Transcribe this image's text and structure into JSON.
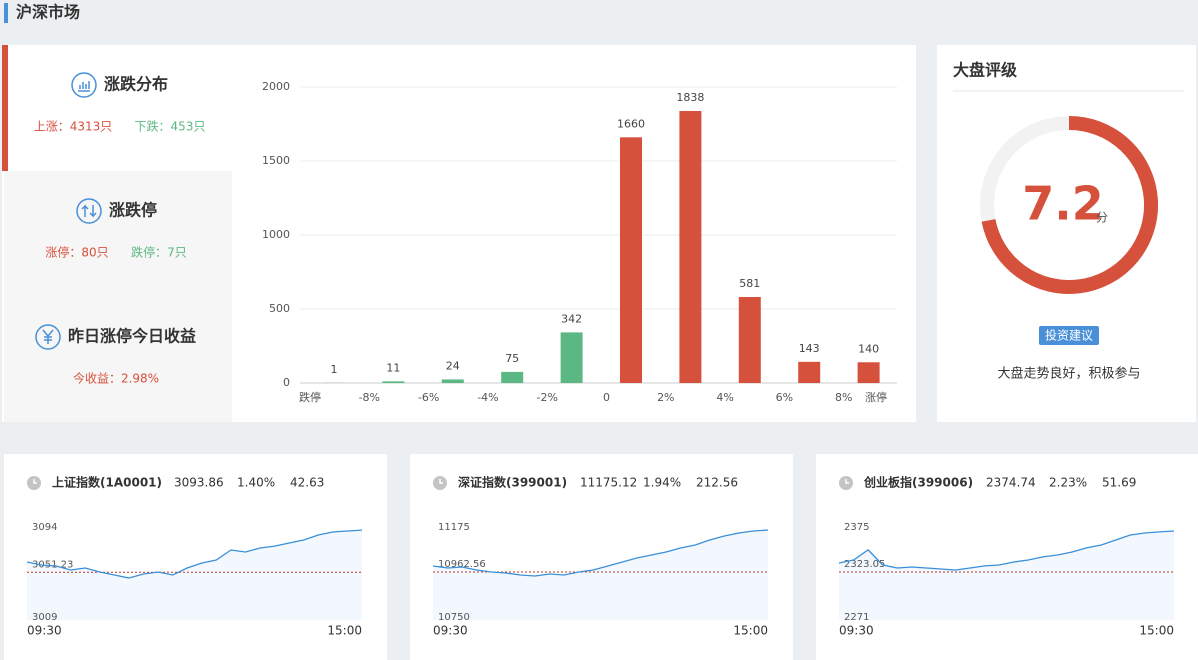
{
  "header": {
    "title": "沪深市场"
  },
  "tabs": [
    {
      "title": "涨跌分布",
      "stats": [
        "上涨：4313只",
        "下跌：453只"
      ]
    },
    {
      "title": "涨跌停",
      "stats": [
        "涨停：80只",
        "跌停：7只"
      ]
    },
    {
      "title": "昨日涨停今日收益",
      "stats": [
        "今收益：2.98%"
      ]
    }
  ],
  "rating": {
    "title": "大盘评级",
    "score": 7.2,
    "unit": "分",
    "range": [
      0,
      10
    ],
    "color": "#d6513c",
    "button": "投资建议",
    "comment": "大盘走势良好，积极参与"
  },
  "indices": [
    {
      "name": "上证指数(1A0001)",
      "price": "3093.86",
      "pct": "1.40%",
      "change": "42.63"
    },
    {
      "name": "深证指数(399001)",
      "price": "11175.12",
      "pct": "1.94%",
      "change": "212.56"
    },
    {
      "name": "创业板指(399006)",
      "price": "2374.74",
      "pct": "2.23%",
      "change": "51.69"
    }
  ],
  "chart_data": [
    {
      "type": "bar",
      "categories": [
        null,
        null,
        null,
        null,
        null,
        null,
        null,
        null,
        null,
        null
      ],
      "values": [
        1,
        11,
        24,
        75,
        342,
        1660,
        1838,
        581,
        143,
        140
      ],
      "colors": [
        "#5cb882",
        "#5cb882",
        "#5cb882",
        "#5cb882",
        "#5cb882",
        "#d6513c",
        "#d6513c",
        "#d6513c",
        "#d6513c",
        "#d6513c"
      ],
      "xtick_labels": [
        "跌停",
        "-8%",
        "-6%",
        "-4%",
        "-2%",
        "0",
        "2%",
        "4%",
        "6%",
        "8%",
        "涨停"
      ],
      "ylim": [
        0,
        2000
      ],
      "yticks": [
        0,
        500,
        1000,
        1500,
        2000
      ],
      "grid": true
    },
    {
      "type": "line",
      "color": "#3a8fd9",
      "values": [
        3060.9,
        3058.1,
        3057.2,
        3053.4,
        3055.3,
        3051.5,
        3048.7,
        3045.8,
        3049.6,
        3051.5,
        3048.7,
        3055.3,
        3060.0,
        3062.8,
        3072.3,
        3070.4,
        3074.2,
        3076.0,
        3078.9,
        3081.7,
        3086.4,
        3089.3,
        3090.2,
        3091.1
      ],
      "ylim": [
        3009,
        3094
      ],
      "yticks": [
        3009,
        3051.23,
        3094
      ],
      "xticks": [
        "09:30",
        "15:00"
      ]
    },
    {
      "type": "line",
      "color": "#3a8fd9",
      "values": [
        10990.7,
        10981.3,
        10986.0,
        10971.8,
        10962.4,
        10957.7,
        10948.2,
        10943.5,
        10953.0,
        10948.2,
        10962.4,
        10971.8,
        10990.7,
        11009.6,
        11028.5,
        11042.6,
        11056.8,
        11075.7,
        11089.8,
        11113.4,
        11132.3,
        11146.5,
        11155.9,
        11160.6
      ],
      "ylim": [
        10750,
        11175
      ],
      "yticks": [
        10750,
        10962.56,
        11175
      ],
      "xticks": [
        "09:30",
        "15:00"
      ]
    },
    {
      "type": "line",
      "color": "#3a8fd9",
      "values": [
        2333.4,
        2336.9,
        2348.5,
        2331.1,
        2327.6,
        2328.8,
        2327.6,
        2326.5,
        2325.3,
        2327.6,
        2330.0,
        2331.1,
        2334.6,
        2336.9,
        2340.4,
        2342.7,
        2346.1,
        2350.8,
        2354.2,
        2360.0,
        2365.8,
        2368.1,
        2369.3,
        2370.4
      ],
      "ylim": [
        2271,
        2375
      ],
      "yticks": [
        2271,
        2323.05,
        2375
      ],
      "xticks": [
        "09:30",
        "15:00"
      ]
    }
  ]
}
